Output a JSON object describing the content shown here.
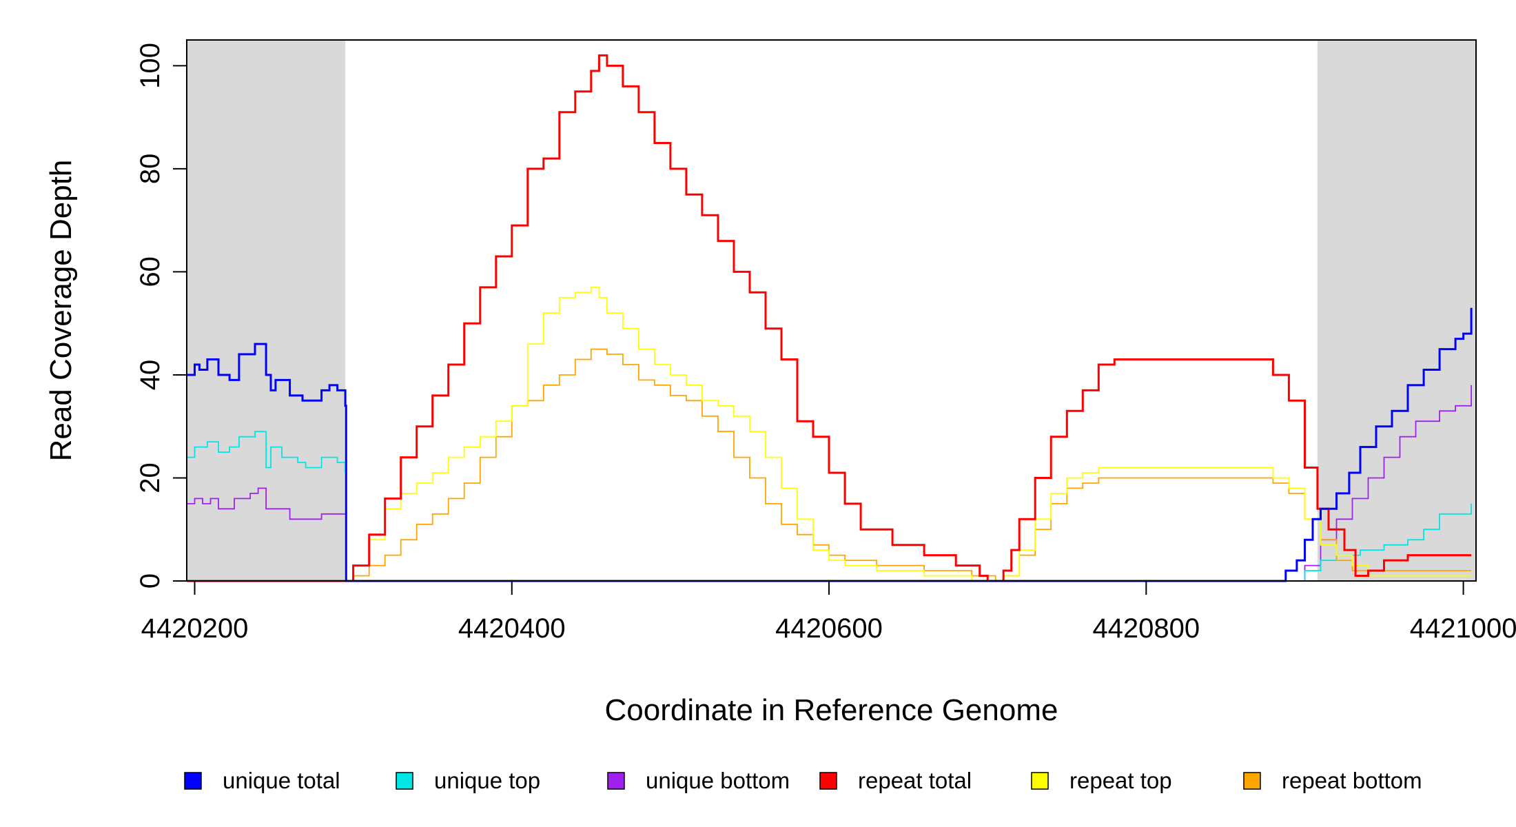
{
  "chart_data": {
    "type": "line",
    "title": "",
    "xlabel": "Coordinate in Reference Genome",
    "ylabel": "Read Coverage Depth",
    "xlim": [
      4420195,
      4421008
    ],
    "ylim": [
      0,
      105
    ],
    "x_ticks": [
      4420200,
      4420400,
      4420600,
      4420800,
      4421000
    ],
    "x_tick_labels": [
      "4420200",
      "4420400",
      "4420600",
      "4420800",
      "4421000"
    ],
    "y_ticks": [
      0,
      20,
      40,
      60,
      80,
      100
    ],
    "y_tick_labels": [
      "0",
      "20",
      "40",
      "60",
      "80",
      "100"
    ],
    "shaded_regions": [
      [
        4420195,
        4420295
      ],
      [
        4420908,
        4421008
      ]
    ],
    "shade_color": "#d9d9d9",
    "grid": false,
    "legend_position": "bottom",
    "series": [
      {
        "name": "unique total",
        "color": "#0000ff",
        "x": [
          4420195,
          4420200,
          4420203,
          4420208,
          4420215,
          4420222,
          4420228,
          4420238,
          4420245,
          4420248,
          4420251,
          4420260,
          4420268,
          4420280,
          4420285,
          4420290,
          4420295,
          4420295.5,
          4420885,
          4420888,
          4420895,
          4420900,
          4420905,
          4420910,
          4420920,
          4420928,
          4420935,
          4420945,
          4420955,
          4420965,
          4420975,
          4420985,
          4420995,
          4421000,
          4421005
        ],
        "y": [
          40,
          42,
          41,
          43,
          40,
          39,
          44,
          46,
          40,
          37,
          39,
          36,
          35,
          37,
          38,
          37,
          34,
          0,
          0,
          2,
          4,
          8,
          12,
          14,
          17,
          21,
          26,
          30,
          33,
          38,
          41,
          45,
          47,
          48,
          53
        ]
      },
      {
        "name": "unique top",
        "color": "#00e5e5",
        "x": [
          4420195,
          4420200,
          4420208,
          4420215,
          4420222,
          4420228,
          4420238,
          4420245,
          4420248,
          4420255,
          4420265,
          4420270,
          4420280,
          4420290,
          4420295,
          4420295.5,
          4420888,
          4420900,
          4420910,
          4420920,
          4420935,
          4420950,
          4420965,
          4420975,
          4420985,
          4421005
        ],
        "y": [
          24,
          26,
          27,
          25,
          26,
          28,
          29,
          22,
          26,
          24,
          23,
          22,
          24,
          23,
          21,
          0,
          0,
          2,
          4,
          5,
          6,
          7,
          8,
          10,
          13,
          15
        ]
      },
      {
        "name": "unique bottom",
        "color": "#a020f0",
        "x": [
          4420195,
          4420200,
          4420205,
          4420210,
          4420215,
          4420225,
          4420235,
          4420240,
          4420245,
          4420250,
          4420260,
          4420270,
          4420280,
          4420290,
          4420295,
          4420295.5,
          4420888,
          4420900,
          4420910,
          4420920,
          4420930,
          4420940,
          4420950,
          4420960,
          4420970,
          4420985,
          4420995,
          4421005
        ],
        "y": [
          15,
          16,
          15,
          16,
          14,
          16,
          17,
          18,
          14,
          14,
          12,
          12,
          13,
          13,
          13,
          0,
          0,
          3,
          8,
          12,
          16,
          20,
          24,
          28,
          31,
          33,
          34,
          38
        ]
      },
      {
        "name": "repeat total",
        "color": "#ff0000",
        "x": [
          4420195,
          4420295,
          4420300,
          4420310,
          4420320,
          4420330,
          4420340,
          4420350,
          4420360,
          4420370,
          4420380,
          4420390,
          4420400,
          4420410,
          4420420,
          4420430,
          4420440,
          4420450,
          4420455,
          4420460,
          4420470,
          4420480,
          4420490,
          4420500,
          4420510,
          4420520,
          4420530,
          4420540,
          4420550,
          4420560,
          4420570,
          4420580,
          4420590,
          4420600,
          4420610,
          4420620,
          4420640,
          4420660,
          4420680,
          4420695,
          4420700,
          4420705,
          4420710,
          4420715,
          4420720,
          4420730,
          4420740,
          4420750,
          4420760,
          4420770,
          4420780,
          4420800,
          4420820,
          4420850,
          4420870,
          4420880,
          4420890,
          4420900,
          4420908,
          4420915,
          4420925,
          4420932,
          4420940,
          4420950,
          4420965,
          4420985,
          4421005
        ],
        "y": [
          0,
          0,
          3,
          9,
          16,
          24,
          30,
          36,
          42,
          50,
          57,
          63,
          69,
          80,
          82,
          91,
          95,
          99,
          102,
          100,
          96,
          91,
          85,
          80,
          75,
          71,
          66,
          60,
          56,
          49,
          43,
          31,
          28,
          21,
          15,
          10,
          7,
          5,
          3,
          1,
          0,
          0,
          2,
          6,
          12,
          20,
          28,
          33,
          37,
          42,
          43,
          43,
          43,
          43,
          43,
          40,
          35,
          22,
          14,
          10,
          6,
          1,
          2,
          4,
          5,
          5,
          5
        ]
      },
      {
        "name": "repeat top",
        "color": "#ffff00",
        "x": [
          4420195,
          4420295,
          4420300,
          4420310,
          4420320,
          4420330,
          4420340,
          4420350,
          4420360,
          4420370,
          4420380,
          4420390,
          4420400,
          4420410,
          4420420,
          4420430,
          4420440,
          4420450,
          4420455,
          4420460,
          4420470,
          4420480,
          4420490,
          4420500,
          4420510,
          4420520,
          4420530,
          4420540,
          4420550,
          4420560,
          4420570,
          4420580,
          4420590,
          4420600,
          4420610,
          4420630,
          4420660,
          4420690,
          4420705,
          4420710,
          4420720,
          4420730,
          4420740,
          4420750,
          4420760,
          4420770,
          4420800,
          4420870,
          4420880,
          4420890,
          4420900,
          4420910,
          4420920,
          4420930,
          4420940,
          4420960,
          4420985,
          4421005
        ],
        "y": [
          0,
          0,
          3,
          8,
          14,
          17,
          19,
          21,
          24,
          26,
          28,
          31,
          34,
          46,
          52,
          55,
          56,
          57,
          55,
          52,
          49,
          45,
          42,
          40,
          38,
          35,
          34,
          32,
          29,
          24,
          18,
          12,
          6,
          4,
          3,
          2,
          1,
          0,
          0,
          1,
          6,
          12,
          17,
          20,
          21,
          22,
          22,
          22,
          20,
          18,
          12,
          7,
          5,
          3,
          1,
          1,
          1,
          1
        ]
      },
      {
        "name": "repeat bottom",
        "color": "#ffa500",
        "x": [
          4420195,
          4420295,
          4420300,
          4420310,
          4420320,
          4420330,
          4420340,
          4420350,
          4420360,
          4420370,
          4420380,
          4420390,
          4420400,
          4420410,
          4420420,
          4420430,
          4420440,
          4420450,
          4420460,
          4420470,
          4420480,
          4420490,
          4420500,
          4420510,
          4420520,
          4420530,
          4420540,
          4420550,
          4420560,
          4420570,
          4420580,
          4420590,
          4420600,
          4420610,
          4420630,
          4420660,
          4420690,
          4420705,
          4420710,
          4420720,
          4420730,
          4420740,
          4420750,
          4420760,
          4420770,
          4420800,
          4420870,
          4420880,
          4420890,
          4420900,
          4420910,
          4420920,
          4420930,
          4420940,
          4420960,
          4420985,
          4421005
        ],
        "y": [
          0,
          0,
          1,
          3,
          5,
          8,
          11,
          13,
          16,
          19,
          24,
          28,
          34,
          35,
          38,
          40,
          43,
          45,
          44,
          42,
          39,
          38,
          36,
          35,
          32,
          29,
          24,
          20,
          15,
          11,
          9,
          7,
          5,
          4,
          3,
          2,
          1,
          0,
          1,
          5,
          10,
          15,
          18,
          19,
          20,
          20,
          20,
          19,
          17,
          12,
          8,
          4,
          2,
          2,
          2,
          2,
          2
        ]
      }
    ]
  }
}
